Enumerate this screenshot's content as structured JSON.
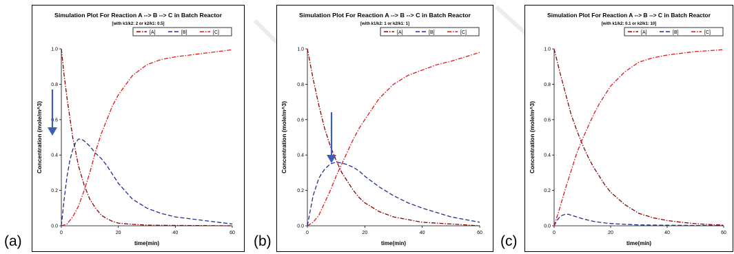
{
  "figure": {
    "panel_labels": [
      "(a)",
      "(b)",
      "(c)"
    ]
  },
  "chart_data": [
    {
      "type": "line",
      "panel": "(a)",
      "title": "Simulation Plot For Reaction A --> B --> C in Batch Reactor",
      "subtitle": "[with k1/k2: 2 or k2/k1: 0.5]",
      "xlabel": "time(min)",
      "ylabel": "Concentration (mole/m^3)",
      "xlim": [
        0,
        60
      ],
      "ylim": [
        0,
        1.0
      ],
      "xticks": [
        0,
        20,
        40,
        60
      ],
      "yticks": [
        "0.0",
        "0.2",
        "0.4",
        "0.6",
        "0.8",
        "1.0"
      ],
      "legend_position": "top-right",
      "annotation": "blue arrow pointing down along the y-axis",
      "series": [
        {
          "name": "[A]",
          "color": "#8b0000",
          "dash": "dashdot",
          "x": [
            0,
            1,
            2,
            3,
            4,
            5,
            6,
            8,
            10,
            12,
            14,
            16,
            18,
            20,
            25,
            30,
            40,
            50,
            60
          ],
          "y": [
            1.0,
            0.85,
            0.72,
            0.61,
            0.5,
            0.42,
            0.34,
            0.23,
            0.15,
            0.1,
            0.06,
            0.04,
            0.025,
            0.015,
            0.008,
            0.004,
            0.002,
            0.001,
            0.0
          ]
        },
        {
          "name": "[B]",
          "color": "#1f2e8f",
          "dash": "dashed",
          "x": [
            0,
            1,
            2,
            3,
            4,
            5,
            6,
            7,
            8,
            10,
            12,
            14,
            16,
            18,
            20,
            25,
            30,
            35,
            40,
            50,
            60
          ],
          "y": [
            0.0,
            0.15,
            0.28,
            0.37,
            0.43,
            0.47,
            0.49,
            0.49,
            0.48,
            0.45,
            0.41,
            0.38,
            0.34,
            0.29,
            0.24,
            0.15,
            0.1,
            0.07,
            0.05,
            0.03,
            0.01
          ]
        },
        {
          "name": "[C]",
          "color": "#e4141b",
          "dash": "dashdot",
          "x": [
            0,
            2,
            4,
            6,
            8,
            10,
            12,
            14,
            16,
            18,
            20,
            25,
            30,
            35,
            40,
            45,
            50,
            55,
            60
          ],
          "y": [
            0.0,
            0.01,
            0.05,
            0.11,
            0.2,
            0.3,
            0.42,
            0.52,
            0.6,
            0.68,
            0.74,
            0.85,
            0.91,
            0.94,
            0.955,
            0.965,
            0.975,
            0.985,
            0.995
          ]
        }
      ]
    },
    {
      "type": "line",
      "panel": "(b)",
      "title": "Simulation Plot For Reaction A --> B --> C in Batch Reactor",
      "subtitle": "[with k1/k2: 1 or k2/k1: 1]",
      "xlabel": "time(min)",
      "ylabel": "Concentration (mole/m^3)",
      "xlim": [
        0,
        60
      ],
      "ylim": [
        0,
        1.0
      ],
      "xticks": [
        0,
        20,
        40,
        60
      ],
      "yticks": [
        "0.0",
        "0.2",
        "0.4",
        "0.6",
        "0.8",
        "1.0"
      ],
      "legend_position": "top-right",
      "annotation": "blue arrow pointing down to the peak of [B]",
      "series": [
        {
          "name": "[A]",
          "color": "#8b0000",
          "dash": "dashdot",
          "x": [
            0,
            2,
            4,
            6,
            8,
            10,
            12,
            14,
            16,
            18,
            20,
            25,
            30,
            40,
            50,
            60
          ],
          "y": [
            1.0,
            0.83,
            0.68,
            0.55,
            0.45,
            0.37,
            0.3,
            0.25,
            0.2,
            0.16,
            0.13,
            0.08,
            0.05,
            0.02,
            0.01,
            0.0
          ]
        },
        {
          "name": "[B]",
          "color": "#1f2e8f",
          "dash": "dashed",
          "x": [
            0,
            2,
            4,
            6,
            8,
            10,
            12,
            14,
            16,
            18,
            20,
            25,
            30,
            35,
            40,
            50,
            60
          ],
          "y": [
            0.0,
            0.17,
            0.27,
            0.32,
            0.35,
            0.36,
            0.355,
            0.345,
            0.33,
            0.31,
            0.28,
            0.22,
            0.17,
            0.13,
            0.1,
            0.05,
            0.02
          ]
        },
        {
          "name": "[C]",
          "color": "#e4141b",
          "dash": "dashdot",
          "x": [
            0,
            2,
            4,
            6,
            8,
            10,
            12,
            14,
            16,
            18,
            20,
            25,
            30,
            35,
            40,
            45,
            50,
            55,
            60
          ],
          "y": [
            0.0,
            0.02,
            0.06,
            0.13,
            0.2,
            0.28,
            0.35,
            0.42,
            0.49,
            0.55,
            0.6,
            0.72,
            0.8,
            0.85,
            0.88,
            0.91,
            0.93,
            0.955,
            0.98
          ]
        }
      ]
    },
    {
      "type": "line",
      "panel": "(c)",
      "title": "Simulation Plot For Reaction A --> B --> C in Batch Reactor",
      "subtitle": "[with k1/k2: 0.1 or k2/k1: 10]",
      "xlabel": "time(min)",
      "ylabel": "Concentration (mole/m^3)",
      "xlim": [
        0,
        60
      ],
      "ylim": [
        0,
        1.0
      ],
      "xticks": [
        0,
        20,
        40,
        60
      ],
      "yticks": [
        "0.0",
        "0.2",
        "0.4",
        "0.6",
        "0.8",
        "1.0"
      ],
      "legend_position": "top-right",
      "series": [
        {
          "name": "[A]",
          "color": "#8b0000",
          "dash": "dashdot",
          "x": [
            0,
            2,
            4,
            6,
            8,
            10,
            12,
            14,
            16,
            18,
            20,
            25,
            30,
            35,
            40,
            45,
            50,
            55,
            60
          ],
          "y": [
            1.0,
            0.87,
            0.75,
            0.63,
            0.54,
            0.46,
            0.39,
            0.33,
            0.28,
            0.23,
            0.19,
            0.12,
            0.07,
            0.045,
            0.03,
            0.02,
            0.012,
            0.007,
            0.004
          ]
        },
        {
          "name": "[B]",
          "color": "#1f2e8f",
          "dash": "dashed",
          "x": [
            0,
            1,
            2,
            3,
            4,
            5,
            6,
            8,
            10,
            12,
            14,
            16,
            18,
            20,
            25,
            30,
            40,
            50,
            60
          ],
          "y": [
            0.0,
            0.03,
            0.05,
            0.06,
            0.065,
            0.065,
            0.06,
            0.05,
            0.04,
            0.032,
            0.025,
            0.02,
            0.016,
            0.013,
            0.008,
            0.005,
            0.003,
            0.002,
            0.001
          ]
        },
        {
          "name": "[C]",
          "color": "#e4141b",
          "dash": "dashdot",
          "x": [
            0,
            2,
            4,
            6,
            8,
            10,
            12,
            14,
            16,
            18,
            20,
            25,
            30,
            35,
            40,
            45,
            50,
            55,
            60
          ],
          "y": [
            0.0,
            0.1,
            0.21,
            0.31,
            0.41,
            0.49,
            0.56,
            0.63,
            0.69,
            0.74,
            0.79,
            0.87,
            0.925,
            0.95,
            0.965,
            0.975,
            0.985,
            0.99,
            0.996
          ]
        }
      ]
    }
  ]
}
